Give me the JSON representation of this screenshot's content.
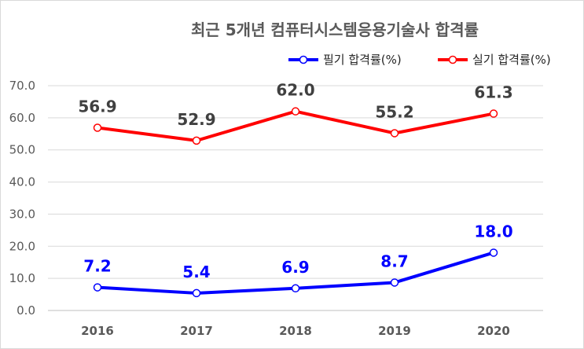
{
  "chart_data": {
    "type": "line",
    "title": "최근 5개년 컴퓨터시스템응용기술사 합격률",
    "xlabel": "",
    "ylabel": "",
    "categories": [
      "2016",
      "2017",
      "2018",
      "2019",
      "2020"
    ],
    "ylim": [
      0,
      70
    ],
    "yticks": [
      "0.0",
      "10.0",
      "20.0",
      "30.0",
      "40.0",
      "50.0",
      "60.0",
      "70.0"
    ],
    "grid": true,
    "legend_position": "top-right",
    "series": [
      {
        "name": "필기 합격률(%)",
        "color": "#0000ff",
        "values": [
          7.2,
          5.4,
          6.9,
          8.7,
          18.0
        ],
        "labels": [
          "7.2",
          "5.4",
          "6.9",
          "8.7",
          "18.0"
        ]
      },
      {
        "name": "실기 합격률(%)",
        "color": "#ff0000",
        "values": [
          56.9,
          52.9,
          62.0,
          55.2,
          61.3
        ],
        "labels": [
          "56.9",
          "52.9",
          "62.0",
          "55.2",
          "61.3"
        ]
      }
    ]
  }
}
